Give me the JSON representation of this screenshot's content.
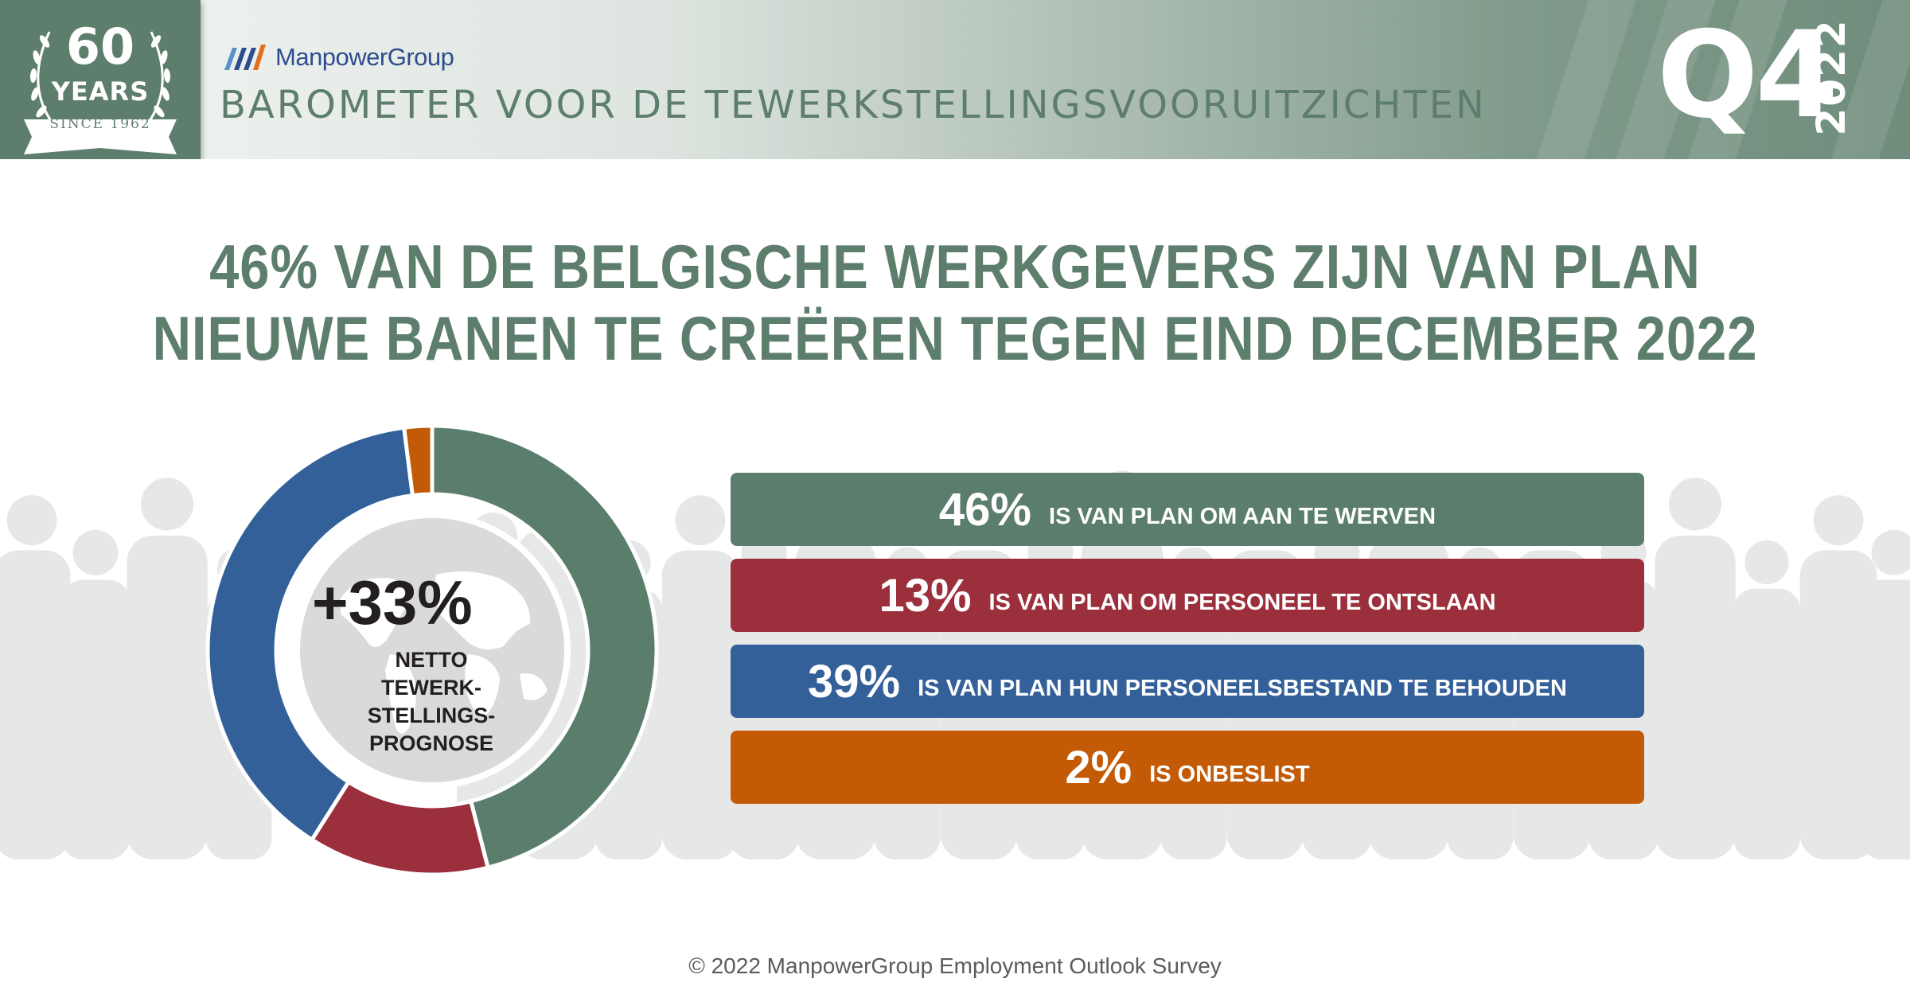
{
  "badge": {
    "number": "60",
    "word": "YEARS",
    "since": "SINCE 1962"
  },
  "brand": {
    "name": "ManpowerGroup"
  },
  "header": {
    "subtitle": "BAROMETER VOOR DE TEWERKSTELLINGSVOORUITZICHTEN",
    "quarter": "Q4",
    "year": "2022"
  },
  "headline": {
    "line1": "46% VAN DE BELGISCHE WERKGEVERS ZIJN VAN PLAN",
    "line2": "NIEUWE BANEN TE CREËREN TEGEN EIND DECEMBER 2022"
  },
  "center": {
    "value": "+33%",
    "label_lines": [
      "NETTO",
      "TEWERK-",
      "STELLINGS-",
      "PROGNOSE"
    ]
  },
  "chart_data": {
    "type": "pie",
    "donut": true,
    "categories": [
      "IS VAN PLAN OM AAN TE WERVEN",
      "IS VAN PLAN OM PERSONEEL TE ONTSLAAN",
      "IS VAN PLAN HUN PERSONEELSBESTAND TE BEHOUDEN",
      "IS ONBESLIST"
    ],
    "values": [
      46,
      13,
      39,
      2
    ],
    "labels": [
      "46%",
      "13%",
      "39%",
      "2%"
    ],
    "colors": [
      "#5a7d6c",
      "#9b2f3b",
      "#34609a",
      "#c35a05"
    ],
    "center_value": "+33%"
  },
  "footer": {
    "text": "© 2022 ManpowerGroup Employment Outlook Survey"
  }
}
